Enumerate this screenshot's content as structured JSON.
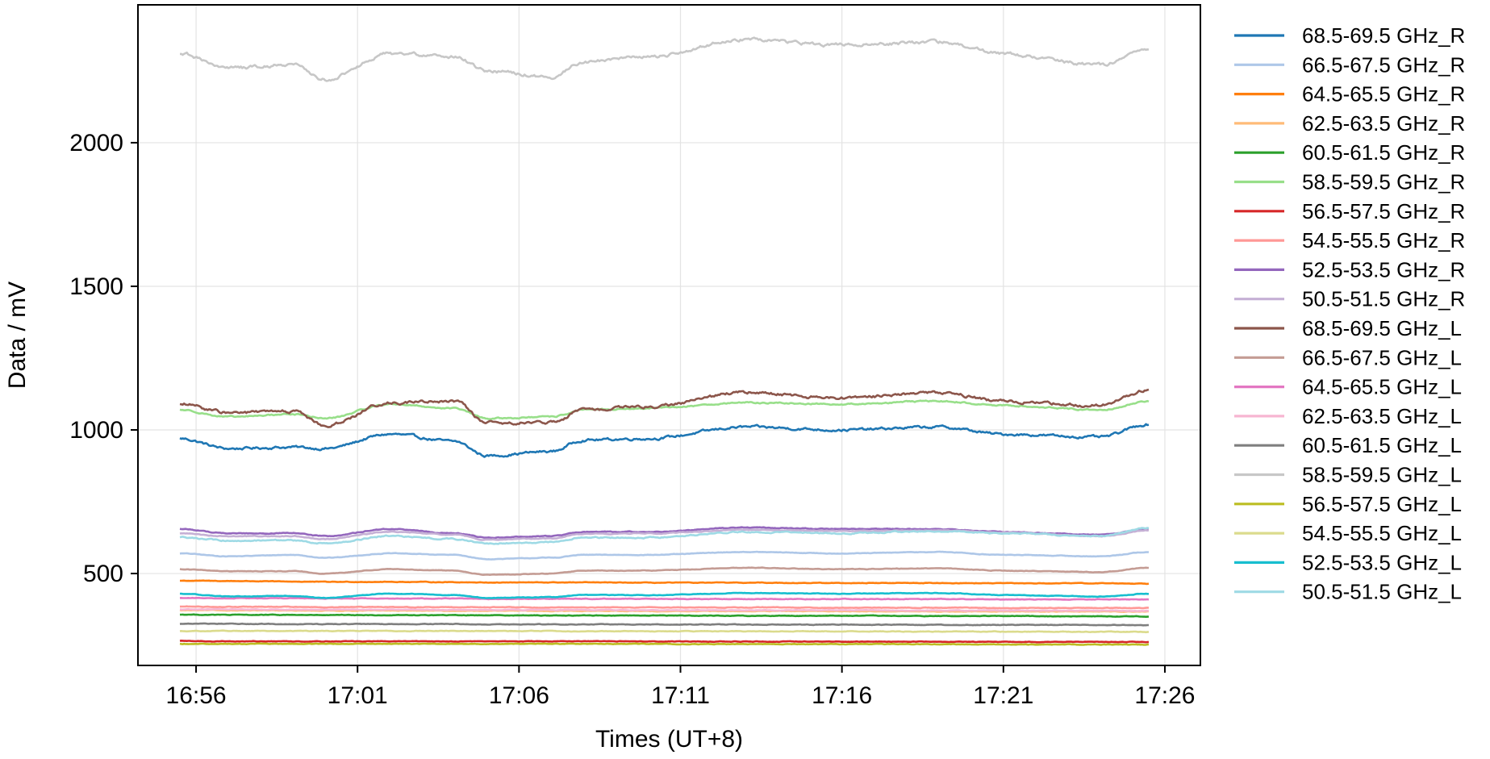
{
  "chart_data": {
    "type": "line",
    "title": "",
    "xlabel": "Times (UT+8)",
    "ylabel": "Data / mV",
    "x_range": [
      "16:54",
      "17:27"
    ],
    "xlim_minutes": [
      -1.8,
      31.1
    ],
    "ylim": [
      180,
      2480
    ],
    "x_ticks": [
      "16:56",
      "17:01",
      "17:06",
      "17:11",
      "17:16",
      "17:21",
      "17:26"
    ],
    "y_ticks": [
      500,
      1000,
      1500,
      2000
    ],
    "grid": true,
    "legend_position": "outside-right",
    "x": [
      "16:55:30",
      "16:57",
      "16:59",
      "17:00",
      "17:02",
      "17:04",
      "17:05",
      "17:07",
      "17:08",
      "17:10",
      "17:13",
      "17:16",
      "17:19",
      "17:21",
      "17:24",
      "17:25:30"
    ],
    "series": [
      {
        "name": "68.5-69.5 GHz_R",
        "color": "#1f77b4",
        "values": [
          970,
          935,
          940,
          935,
          985,
          960,
          910,
          925,
          965,
          970,
          1010,
          1000,
          1010,
          985,
          975,
          1020
        ]
      },
      {
        "name": "66.5-67.5 GHz_R",
        "color": "#aec7e8",
        "values": [
          570,
          560,
          565,
          555,
          570,
          565,
          550,
          555,
          565,
          565,
          575,
          570,
          575,
          565,
          560,
          575
        ]
      },
      {
        "name": "64.5-65.5 GHz_R",
        "color": "#ff7f0e",
        "values": [
          475,
          474,
          472,
          471,
          471,
          470,
          469,
          469,
          469,
          468,
          468,
          467,
          467,
          466,
          466,
          465
        ]
      },
      {
        "name": "62.5-63.5 GHz_R",
        "color": "#ffbb78",
        "values": [
          372,
          372,
          371,
          371,
          371,
          370,
          370,
          370,
          370,
          369,
          369,
          369,
          368,
          368,
          368,
          368
        ]
      },
      {
        "name": "60.5-61.5 GHz_R",
        "color": "#2ca02c",
        "values": [
          357,
          356,
          356,
          355,
          355,
          355,
          355,
          354,
          354,
          354,
          353,
          353,
          352,
          352,
          351,
          351
        ]
      },
      {
        "name": "58.5-59.5 GHz_R",
        "color": "#98df8a",
        "values": [
          1070,
          1045,
          1055,
          1040,
          1090,
          1075,
          1040,
          1045,
          1070,
          1075,
          1095,
          1090,
          1100,
          1085,
          1070,
          1100
        ]
      },
      {
        "name": "56.5-57.5 GHz_R",
        "color": "#d62728",
        "values": [
          265,
          264,
          264,
          264,
          264,
          264,
          264,
          264,
          264,
          264,
          263,
          263,
          263,
          262,
          262,
          262
        ]
      },
      {
        "name": "54.5-55.5 GHz_R",
        "color": "#ff9896",
        "values": [
          385,
          384,
          384,
          383,
          383,
          383,
          383,
          382,
          382,
          382,
          382,
          381,
          381,
          380,
          380,
          380
        ]
      },
      {
        "name": "52.5-53.5 GHz_R",
        "color": "#9467bd",
        "values": [
          655,
          640,
          640,
          630,
          655,
          640,
          625,
          630,
          645,
          645,
          660,
          655,
          655,
          645,
          635,
          655
        ]
      },
      {
        "name": "50.5-51.5 GHz_R",
        "color": "#c5b0d5",
        "values": [
          640,
          630,
          630,
          620,
          645,
          635,
          618,
          622,
          638,
          640,
          652,
          648,
          650,
          642,
          630,
          650
        ]
      },
      {
        "name": "68.5-69.5 GHz_L",
        "color": "#8c564b",
        "values": [
          1090,
          1060,
          1065,
          1015,
          1095,
          1100,
          1025,
          1025,
          1070,
          1080,
          1130,
          1110,
          1130,
          1100,
          1085,
          1140
        ]
      },
      {
        "name": "66.5-67.5 GHz_L",
        "color": "#c49c94",
        "values": [
          515,
          508,
          508,
          500,
          515,
          510,
          495,
          500,
          510,
          510,
          520,
          515,
          518,
          510,
          505,
          520
        ]
      },
      {
        "name": "64.5-65.5 GHz_L",
        "color": "#e377c2",
        "values": [
          415,
          414,
          414,
          413,
          413,
          413,
          412,
          412,
          412,
          412,
          411,
          411,
          411,
          410,
          410,
          410
        ]
      },
      {
        "name": "62.5-63.5 GHz_L",
        "color": "#f7b6d2",
        "values": [
          375,
          375,
          374,
          374,
          374,
          373,
          373,
          373,
          373,
          372,
          372,
          372,
          371,
          371,
          371,
          370
        ]
      },
      {
        "name": "60.5-61.5 GHz_L",
        "color": "#7f7f7f",
        "values": [
          325,
          325,
          324,
          324,
          324,
          324,
          323,
          323,
          323,
          323,
          322,
          322,
          321,
          321,
          321,
          320
        ]
      },
      {
        "name": "58.5-59.5 GHz_L",
        "color": "#c7c7c7",
        "values": [
          2310,
          2260,
          2270,
          2220,
          2310,
          2300,
          2250,
          2230,
          2280,
          2300,
          2360,
          2340,
          2350,
          2310,
          2270,
          2330
        ]
      },
      {
        "name": "56.5-57.5 GHz_L",
        "color": "#bcbd22",
        "values": [
          255,
          255,
          255,
          255,
          255,
          255,
          255,
          255,
          255,
          255,
          254,
          254,
          254,
          253,
          253,
          252
        ]
      },
      {
        "name": "54.5-55.5 GHz_L",
        "color": "#dbdb8d",
        "values": [
          300,
          300,
          300,
          300,
          300,
          300,
          300,
          300,
          299,
          299,
          299,
          299,
          298,
          298,
          297,
          297
        ]
      },
      {
        "name": "52.5-53.5 GHz_L",
        "color": "#17becf",
        "values": [
          430,
          420,
          422,
          415,
          430,
          425,
          415,
          418,
          425,
          425,
          432,
          430,
          432,
          425,
          420,
          430
        ]
      },
      {
        "name": "50.5-51.5 GHz_L",
        "color": "#9edae5",
        "values": [
          625,
          615,
          615,
          605,
          630,
          620,
          605,
          610,
          625,
          625,
          645,
          640,
          648,
          640,
          630,
          660
        ]
      }
    ]
  }
}
